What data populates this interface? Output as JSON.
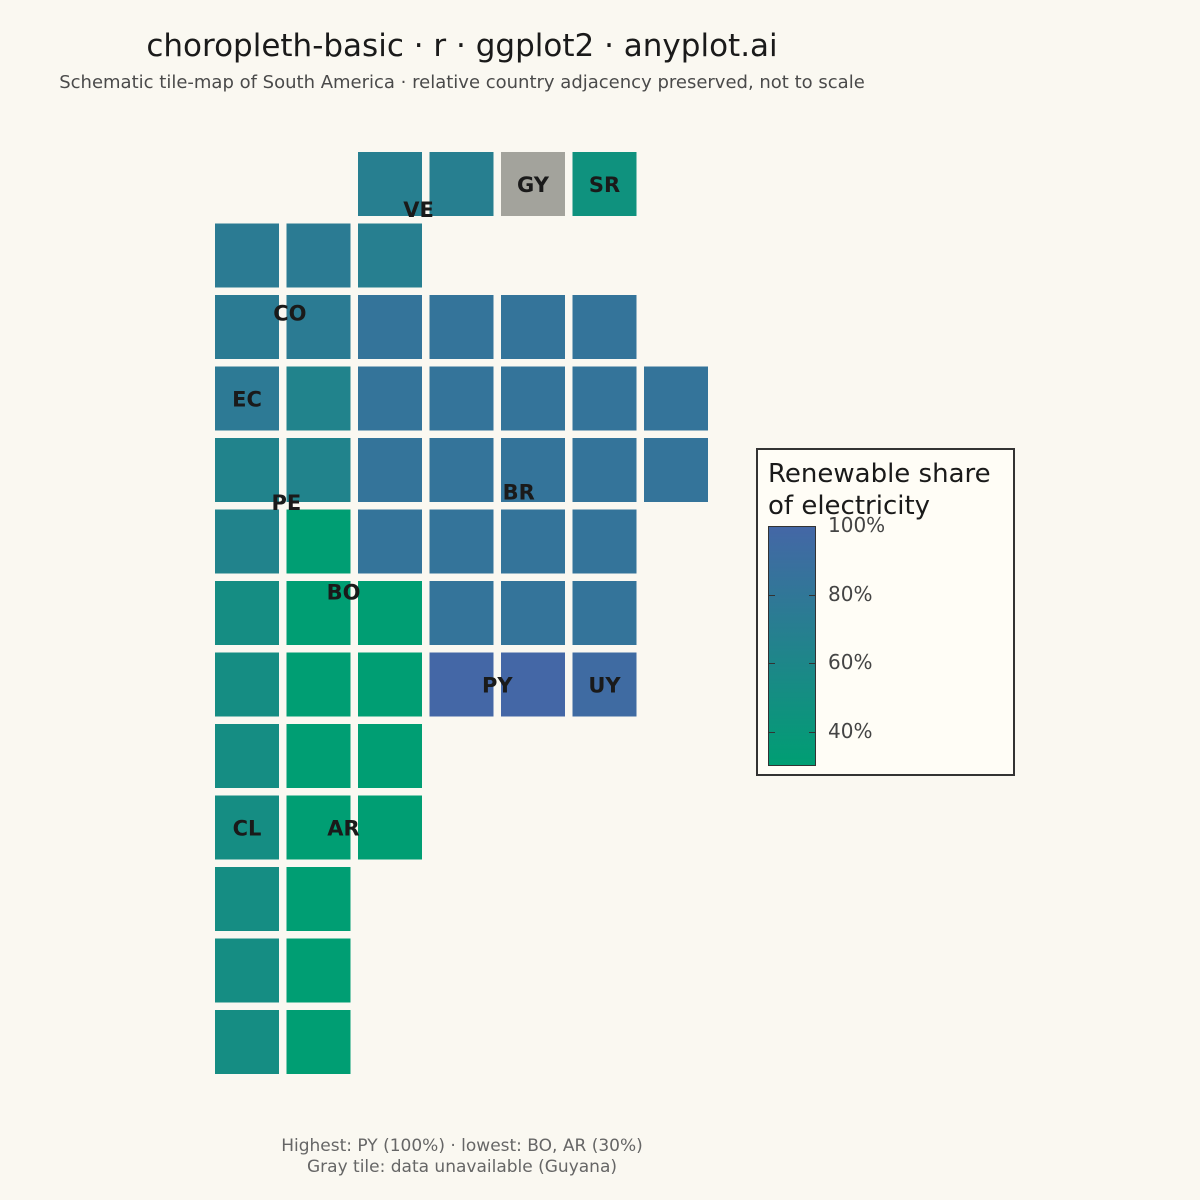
{
  "title": "choropleth-basic · r · ggplot2 · anyplot.ai",
  "subtitle": "Schematic tile-map of South America · relative country adjacency preserved, not to scale",
  "caption_lines": [
    "Highest: PY (100%) · lowest: BO, AR (30%)",
    "Gray tile: data unavailable (Guyana)"
  ],
  "colors": {
    "low": "#009E73",
    "high": "#4467A6",
    "na": "#A3A39C",
    "label": "#1a1a1a"
  },
  "chart_data": {
    "type": "heatmap",
    "title": "choropleth-basic · r · ggplot2 · anyplot.ai",
    "subtitle": "Schematic tile-map of South America · relative country adjacency preserved, not to scale",
    "value_range": [
      30,
      100
    ],
    "countries": [
      {
        "code": "VE",
        "value": 70,
        "tiles": [
          [
            2,
            0
          ],
          [
            3,
            0
          ],
          [
            2,
            1
          ]
        ],
        "label_at": [
          2.4,
          0.35
        ]
      },
      {
        "code": "GY",
        "value": null,
        "tiles": [
          [
            4,
            0
          ]
        ],
        "label_at": [
          4,
          0
        ]
      },
      {
        "code": "SR",
        "value": 45,
        "tiles": [
          [
            5,
            0
          ]
        ],
        "label_at": [
          5,
          0
        ]
      },
      {
        "code": "CO",
        "value": 74,
        "tiles": [
          [
            0,
            1
          ],
          [
            1,
            1
          ],
          [
            0,
            2
          ],
          [
            1,
            2
          ]
        ],
        "label_at": [
          0.6,
          1.8
        ]
      },
      {
        "code": "EC",
        "value": 76,
        "tiles": [
          [
            0,
            3
          ]
        ],
        "label_at": [
          0,
          3
        ]
      },
      {
        "code": "PE",
        "value": 64,
        "tiles": [
          [
            1,
            3
          ],
          [
            0,
            4
          ],
          [
            1,
            4
          ],
          [
            0,
            5
          ]
        ],
        "label_at": [
          0.55,
          4.45
        ]
      },
      {
        "code": "BR",
        "value": 84,
        "tiles": [
          [
            2,
            2
          ],
          [
            3,
            2
          ],
          [
            4,
            2
          ],
          [
            5,
            2
          ],
          [
            2,
            3
          ],
          [
            3,
            3
          ],
          [
            4,
            3
          ],
          [
            5,
            3
          ],
          [
            6,
            3
          ],
          [
            2,
            4
          ],
          [
            3,
            4
          ],
          [
            4,
            4
          ],
          [
            5,
            4
          ],
          [
            6,
            4
          ],
          [
            2,
            5
          ],
          [
            3,
            5
          ],
          [
            4,
            5
          ],
          [
            5,
            5
          ],
          [
            3,
            6
          ],
          [
            4,
            6
          ],
          [
            5,
            6
          ]
        ],
        "label_at": [
          3.8,
          4.3
        ]
      },
      {
        "code": "BO",
        "value": 30,
        "tiles": [
          [
            1,
            5
          ],
          [
            1,
            6
          ],
          [
            2,
            6
          ],
          [
            1,
            7
          ],
          [
            2,
            7
          ],
          [
            1,
            8
          ],
          [
            2,
            8
          ]
        ],
        "label_at": [
          1.35,
          5.7
        ]
      },
      {
        "code": "PY",
        "value": 100,
        "tiles": [
          [
            3,
            7
          ],
          [
            4,
            7
          ]
        ],
        "label_at": [
          3.5,
          7
        ]
      },
      {
        "code": "UY",
        "value": 95,
        "tiles": [
          [
            5,
            7
          ]
        ],
        "label_at": [
          5,
          7
        ]
      },
      {
        "code": "CL",
        "value": 52,
        "tiles": [
          [
            0,
            6
          ],
          [
            0,
            7
          ],
          [
            0,
            8
          ],
          [
            0,
            9
          ],
          [
            0,
            10
          ],
          [
            0,
            11
          ],
          [
            0,
            12
          ]
        ],
        "label_at": [
          0,
          9
        ]
      },
      {
        "code": "AR",
        "value": 30,
        "tiles": [
          [
            1,
            9
          ],
          [
            2,
            9
          ],
          [
            1,
            10
          ],
          [
            1,
            11
          ],
          [
            1,
            12
          ]
        ],
        "label_at": [
          1.35,
          9
        ]
      }
    ],
    "legend": {
      "title": "Renewable share\nof electricity",
      "ticks": [
        {
          "value": 100,
          "label": "100%"
        },
        {
          "value": 80,
          "label": "80%"
        },
        {
          "value": 60,
          "label": "60%"
        },
        {
          "value": 40,
          "label": "40%"
        }
      ],
      "placement": "right"
    }
  }
}
